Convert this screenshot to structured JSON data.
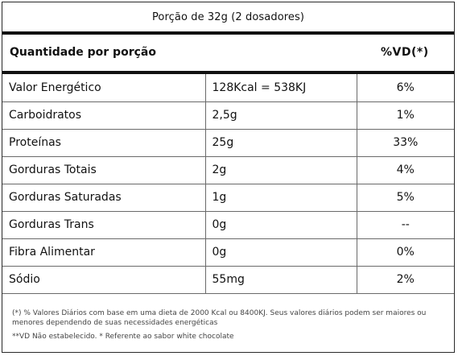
{
  "portion_title": "Porção de 32g (2 dosadores)",
  "header": {
    "quantity_label": "Quantidade por porção",
    "dv_label": "%VD(*)"
  },
  "rows": [
    {
      "nutrient": "Valor Energético",
      "amount": "128Kcal = 538KJ",
      "dv": "6%"
    },
    {
      "nutrient": "Carboidratos",
      "amount": "2,5g",
      "dv": "1%"
    },
    {
      "nutrient": "Proteínas",
      "amount": "25g",
      "dv": "33%"
    },
    {
      "nutrient": "Gorduras Totais",
      "amount": "2g",
      "dv": "4%"
    },
    {
      "nutrient": "Gorduras Saturadas",
      "amount": "1g",
      "dv": "5%"
    },
    {
      "nutrient": "Gorduras Trans",
      "amount": "0g",
      "dv": "--"
    },
    {
      "nutrient": "Fibra Alimentar",
      "amount": "0g",
      "dv": "0%"
    },
    {
      "nutrient": "Sódio",
      "amount": "55mg",
      "dv": "2%"
    }
  ],
  "footnotes": {
    "daily_values": "(*) % Valores Diários com base em uma dieta de 2000 Kcal ou 8400KJ. Seus valores diários podem ser maiores ou menores dependendo de suas necessidades energéticas",
    "not_established": "**VD Não estabelecido. * Referente ao sabor white chocolate"
  }
}
